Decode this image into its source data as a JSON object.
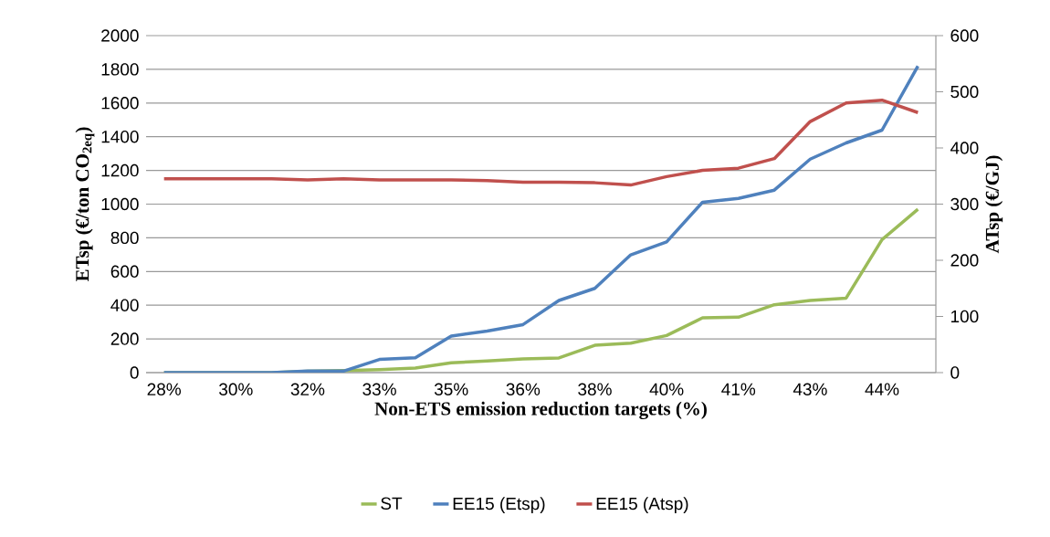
{
  "chart_data": {
    "type": "line",
    "xlabel": "Non-ETS emission reduction targets (%)",
    "ylabel": "ETsp (€/ton CO$_{2eq}$)",
    "y2label": "ATsp (€/GJ)",
    "categories": [
      "28%",
      null,
      "30%",
      null,
      "32%",
      null,
      "33%",
      null,
      "35%",
      null,
      "36%",
      null,
      "38%",
      null,
      "40%",
      null,
      "41%",
      null,
      "43%",
      null,
      "44%",
      null
    ],
    "series": [
      {
        "name": "ST",
        "color": "#9bbb59",
        "values": [
          0,
          0,
          0,
          0,
          8,
          12,
          18,
          27,
          58,
          69,
          81,
          87,
          162,
          175,
          220,
          325,
          329,
          403,
          428,
          442,
          789,
          969
        ]
      },
      {
        "name": "EE15 (Etsp)",
        "color": "#4f81bd",
        "values": [
          0,
          0,
          0,
          0,
          9,
          9,
          78,
          88,
          217,
          247,
          285,
          428,
          500,
          699,
          776,
          1011,
          1034,
          1083,
          1267,
          1363,
          1439,
          1819
        ]
      },
      {
        "name": "EE15 (Atsp)",
        "color": "#c0504d",
        "axis": "y2",
        "values": [
          345,
          345,
          345,
          345,
          343,
          345,
          343,
          343,
          343,
          342,
          339,
          339,
          338,
          334,
          349,
          360,
          364,
          381,
          447,
          480,
          485,
          463
        ]
      }
    ],
    "ylim": [
      0,
      2000
    ],
    "yticks": [
      0,
      200,
      400,
      600,
      800,
      1000,
      1200,
      1400,
      1600,
      1800,
      2000
    ],
    "y2lim": [
      0,
      600
    ],
    "y2ticks": [
      0,
      100,
      200,
      300,
      400,
      500,
      600
    ],
    "grid": "y",
    "legend": "bottom"
  }
}
